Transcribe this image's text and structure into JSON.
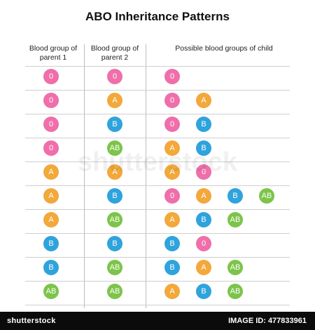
{
  "title": "ABO Inheritance Patterns",
  "headers": {
    "parent1": "Blood group of parent 1",
    "parent2": "Blood group of parent 2",
    "child": "Possible blood groups of child"
  },
  "colors": {
    "0": "#ee6fa9",
    "A": "#f2a83a",
    "B": "#2fa3dc",
    "AB": "#7cc44a"
  },
  "rows": [
    {
      "p1": "0",
      "p2": "0",
      "children": [
        "0"
      ]
    },
    {
      "p1": "0",
      "p2": "A",
      "children": [
        "0",
        "A"
      ]
    },
    {
      "p1": "0",
      "p2": "B",
      "children": [
        "0",
        "B"
      ]
    },
    {
      "p1": "0",
      "p2": "AB",
      "children": [
        "A",
        "B"
      ]
    },
    {
      "p1": "A",
      "p2": "A",
      "children": [
        "A",
        "0"
      ]
    },
    {
      "p1": "A",
      "p2": "B",
      "children": [
        "0",
        "A",
        "B",
        "AB"
      ]
    },
    {
      "p1": "A",
      "p2": "AB",
      "children": [
        "A",
        "B",
        "AB"
      ]
    },
    {
      "p1": "B",
      "p2": "B",
      "children": [
        "B",
        "0"
      ]
    },
    {
      "p1": "B",
      "p2": "AB",
      "children": [
        "B",
        "A",
        "AB"
      ]
    },
    {
      "p1": "AB",
      "p2": "AB",
      "children": [
        "A",
        "B",
        "AB"
      ]
    }
  ],
  "watermark": "shutterstock",
  "footer": {
    "brand": "shutterstock",
    "id": "IMAGE ID: 477833961"
  }
}
